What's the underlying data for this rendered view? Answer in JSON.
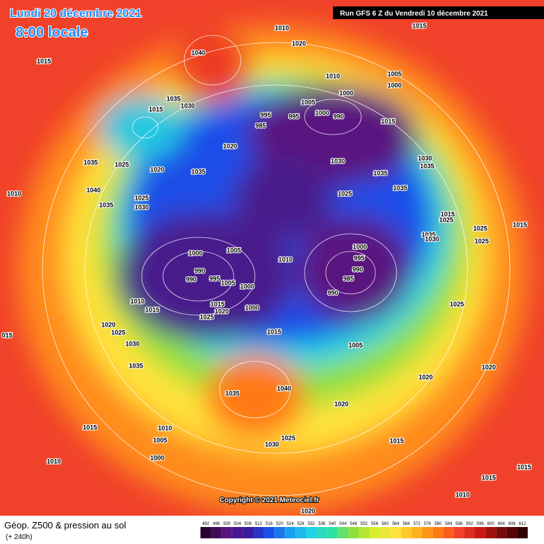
{
  "header": {
    "date": "Lundi 20 décembre 2021",
    "time": "8:00 locale",
    "run": "Run GFS 6 Z du Vendredi 10 décembre 2021"
  },
  "map": {
    "isobar_labels": [
      "1010",
      "1015",
      "1020",
      "1040",
      "1015",
      "1010",
      "1005",
      "1000",
      "1000",
      "1035",
      "1015",
      "1030",
      "1005",
      "995",
      "995",
      "1000",
      "990",
      "985",
      "1015",
      "1020",
      "1035",
      "1025",
      "1020",
      "1035",
      "1030",
      "1030",
      "1035",
      "1035",
      "1035",
      "1025",
      "1010",
      "1040",
      "1025",
      "1035",
      "1030",
      "1015",
      "1025",
      "1025",
      "1035",
      "1030",
      "1025",
      "1000",
      "1005",
      "1010",
      "1000",
      "995",
      "990",
      "985",
      "990",
      "990",
      "990",
      "995",
      "1005",
      "1000",
      "1015",
      "1020",
      "1025",
      "1000",
      "1010",
      "1015",
      "1020",
      "1025",
      "1030",
      "1015",
      "1005",
      "1025",
      "1035",
      "1020",
      "1020",
      "1035",
      "1040",
      "1020",
      "1015",
      "1010",
      "1005",
      "1000",
      "1030",
      "1025",
      "1015",
      "1010",
      "1015",
      "1015",
      "1010",
      "1020",
      "015",
      "1015"
    ]
  },
  "footer": {
    "title": "Géop. Z500 & pression au sol",
    "lead": "(+ 240h)",
    "copyright": "Copyright © 2021 Meteociel.fr",
    "scale": [
      492,
      496,
      500,
      504,
      508,
      512,
      516,
      520,
      524,
      528,
      532,
      536,
      540,
      544,
      548,
      552,
      556,
      560,
      564,
      568,
      572,
      576,
      580,
      584,
      588,
      592,
      596,
      600,
      604,
      608,
      612
    ]
  }
}
